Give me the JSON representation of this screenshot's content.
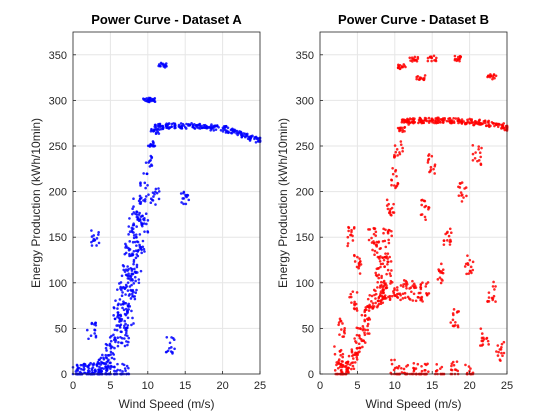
{
  "chart_data": [
    {
      "type": "scatter",
      "title": "Power Curve - Dataset A",
      "xlabel": "Wind Speed (m/s)",
      "ylabel": "Energy Production (kWh/10min)",
      "xlim": [
        0,
        25
      ],
      "ylim": [
        0,
        375
      ],
      "xticks": [
        0,
        5,
        10,
        15,
        20,
        25
      ],
      "yticks": [
        0,
        50,
        100,
        150,
        200,
        250,
        300,
        350
      ],
      "grid": true,
      "marker_color": "#0000ff",
      "series": [
        {
          "name": "Dataset A",
          "sampled_points": [
            [
              2.0,
              0
            ],
            [
              2.5,
              1
            ],
            [
              3.0,
              3
            ],
            [
              3.5,
              6
            ],
            [
              4.0,
              10
            ],
            [
              4.5,
              15
            ],
            [
              5.0,
              22
            ],
            [
              5.5,
              32
            ],
            [
              6.0,
              45
            ],
            [
              6.5,
              60
            ],
            [
              7.0,
              78
            ],
            [
              7.5,
              98
            ],
            [
              8.0,
              120
            ],
            [
              8.5,
              145
            ],
            [
              9.0,
              172
            ],
            [
              9.5,
              200
            ],
            [
              10.0,
              228
            ],
            [
              10.5,
              252
            ],
            [
              11.0,
              266
            ],
            [
              11.5,
              271
            ],
            [
              12.0,
              272
            ],
            [
              13.0,
              272
            ],
            [
              14.0,
              272
            ],
            [
              15.0,
              272
            ],
            [
              16.0,
              272
            ],
            [
              17.0,
              272
            ],
            [
              18.0,
              271
            ],
            [
              19.0,
              270
            ],
            [
              20.0,
              269
            ],
            [
              21.0,
              267
            ],
            [
              22.0,
              265
            ],
            [
              23.0,
              262
            ],
            [
              24.0,
              259
            ],
            [
              25.0,
              257
            ],
            [
              7.0,
              40
            ],
            [
              7.5,
              60
            ],
            [
              8.0,
              85
            ],
            [
              8.5,
              110
            ],
            [
              9.0,
              140
            ],
            [
              9.5,
              165
            ],
            [
              6.0,
              70
            ],
            [
              6.5,
              90
            ],
            [
              7.0,
              110
            ],
            [
              7.5,
              135
            ],
            [
              8.0,
              160
            ],
            [
              8.5,
              185
            ],
            [
              3.0,
              148
            ],
            [
              2.5,
              47
            ],
            [
              12.0,
              339
            ],
            [
              10.0,
              301
            ],
            [
              13.0,
              32
            ],
            [
              10.5,
              301
            ],
            [
              15.0,
              193
            ],
            [
              11.0,
              195
            ],
            [
              4.0,
              0
            ],
            [
              5.0,
              0
            ],
            [
              3.0,
              0
            ],
            [
              6.0,
              0
            ],
            [
              7.0,
              0
            ],
            [
              0.5,
              0
            ],
            [
              1.0,
              0
            ],
            [
              1.5,
              0
            ]
          ]
        }
      ]
    },
    {
      "type": "scatter",
      "title": "Power Curve - Dataset B",
      "xlabel": "Wind Speed (m/s)",
      "ylabel": "Energy Production (kWh/10min)",
      "xlim": [
        0,
        25
      ],
      "ylim": [
        0,
        375
      ],
      "xticks": [
        0,
        5,
        10,
        15,
        20,
        25
      ],
      "yticks": [
        0,
        50,
        100,
        150,
        200,
        250,
        300,
        350
      ],
      "grid": true,
      "marker_color": "#ff0000",
      "series": [
        {
          "name": "Dataset B",
          "sampled_points": [
            [
              2.5,
              0
            ],
            [
              3.0,
              2
            ],
            [
              3.5,
              5
            ],
            [
              4.0,
              10
            ],
            [
              4.5,
              18
            ],
            [
              5.0,
              28
            ],
            [
              5.5,
              40
            ],
            [
              6.0,
              55
            ],
            [
              6.5,
              68
            ],
            [
              7.0,
              78
            ],
            [
              7.5,
              84
            ],
            [
              8.0,
              88
            ],
            [
              8.5,
              90
            ],
            [
              9.0,
              91
            ],
            [
              10.0,
              92
            ],
            [
              11.0,
              92
            ],
            [
              12.0,
              91
            ],
            [
              13.0,
              90
            ],
            [
              14.0,
              90
            ],
            [
              9.0,
              150
            ],
            [
              9.5,
              185
            ],
            [
              10.0,
              215
            ],
            [
              10.5,
              245
            ],
            [
              11.0,
              268
            ],
            [
              11.5,
              276
            ],
            [
              12.0,
              278
            ],
            [
              13.0,
              278
            ],
            [
              14.0,
              278
            ],
            [
              15.0,
              278
            ],
            [
              16.0,
              278
            ],
            [
              17.0,
              278
            ],
            [
              18.0,
              278
            ],
            [
              19.0,
              277
            ],
            [
              20.0,
              277
            ],
            [
              21.0,
              276
            ],
            [
              22.0,
              275
            ],
            [
              23.0,
              274
            ],
            [
              24.0,
              272
            ],
            [
              25.0,
              270
            ],
            [
              8.0,
              110
            ],
            [
              8.5,
              130
            ],
            [
              9.0,
              118
            ],
            [
              7.5,
              135
            ],
            [
              7.0,
              150
            ],
            [
              11.0,
              337
            ],
            [
              12.5,
              345
            ],
            [
              13.5,
              325
            ],
            [
              15.0,
              346
            ],
            [
              18.5,
              346
            ],
            [
              23.0,
              326
            ],
            [
              14.0,
              180
            ],
            [
              15.0,
              230
            ],
            [
              16.0,
              110
            ],
            [
              17.0,
              150
            ],
            [
              18.0,
              60
            ],
            [
              19.0,
              200
            ],
            [
              20.0,
              120
            ],
            [
              21.0,
              240
            ],
            [
              22.0,
              40
            ],
            [
              23.0,
              90
            ],
            [
              24.0,
              25
            ],
            [
              4.0,
              150
            ],
            [
              5.0,
              120
            ],
            [
              4.5,
              80
            ],
            [
              3.0,
              50
            ],
            [
              2.5,
              20
            ],
            [
              10.0,
              5
            ],
            [
              11.0,
              0
            ],
            [
              12.0,
              2
            ],
            [
              13.0,
              0
            ],
            [
              14.0,
              1
            ],
            [
              16.0,
              0
            ],
            [
              18.0,
              3
            ],
            [
              20.0,
              0
            ]
          ]
        }
      ]
    }
  ]
}
